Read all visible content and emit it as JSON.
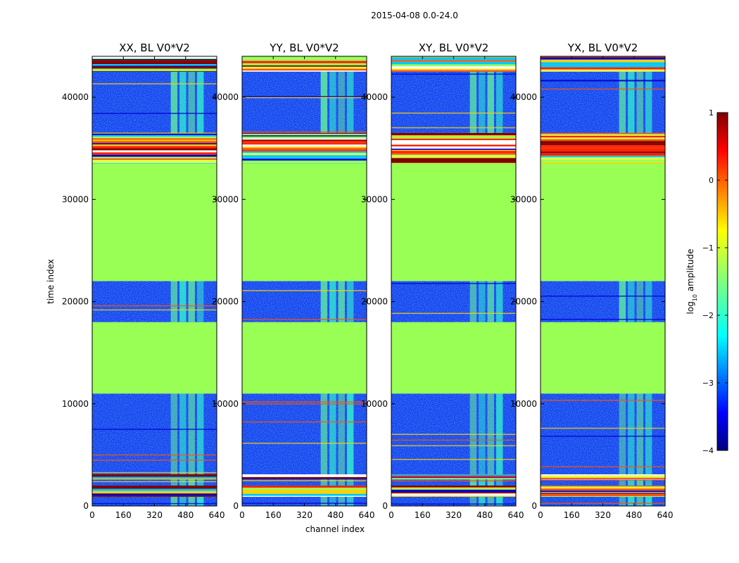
{
  "chart_data": {
    "type": "heatmap",
    "title": "2015-04-08 0.0-24.0",
    "xlabel": "channel index",
    "ylabel": "time index",
    "xlim": [
      0,
      640
    ],
    "ylim": [
      0,
      44000
    ],
    "x_ticks": [
      0,
      160,
      320,
      480,
      640
    ],
    "y_ticks": [
      0,
      10000,
      20000,
      30000,
      40000
    ],
    "panels": [
      {
        "title": "XX, BL V0*V2"
      },
      {
        "title": "YY, BL V0*V2"
      },
      {
        "title": "XY, BL V0*V2"
      },
      {
        "title": "YX, BL V0*V2"
      }
    ],
    "time_segments": [
      {
        "start": 0,
        "end": 900,
        "kind": "noise"
      },
      {
        "start": 900,
        "end": 2000,
        "kind": "flagged"
      },
      {
        "start": 2000,
        "end": 2600,
        "kind": "noise"
      },
      {
        "start": 2600,
        "end": 3100,
        "kind": "flagged"
      },
      {
        "start": 3100,
        "end": 11000,
        "kind": "noise"
      },
      {
        "start": 11000,
        "end": 18000,
        "kind": "flat"
      },
      {
        "start": 18000,
        "end": 22000,
        "kind": "noise"
      },
      {
        "start": 22000,
        "end": 33500,
        "kind": "flat"
      },
      {
        "start": 33500,
        "end": 36500,
        "kind": "flagged"
      },
      {
        "start": 36500,
        "end": 42500,
        "kind": "noise"
      },
      {
        "start": 42500,
        "end": 44000,
        "kind": "flagged"
      }
    ],
    "bright_channel_band": [
      400,
      580
    ],
    "colorbar": {
      "label": "log10 amplitude",
      "range": [
        -4,
        1
      ],
      "ticks": [
        1,
        0,
        -1,
        -2,
        -3,
        -4
      ],
      "tick_labels": [
        "1",
        "0",
        "−1",
        "−2",
        "−3",
        "−4"
      ],
      "colormap": "jet"
    }
  }
}
